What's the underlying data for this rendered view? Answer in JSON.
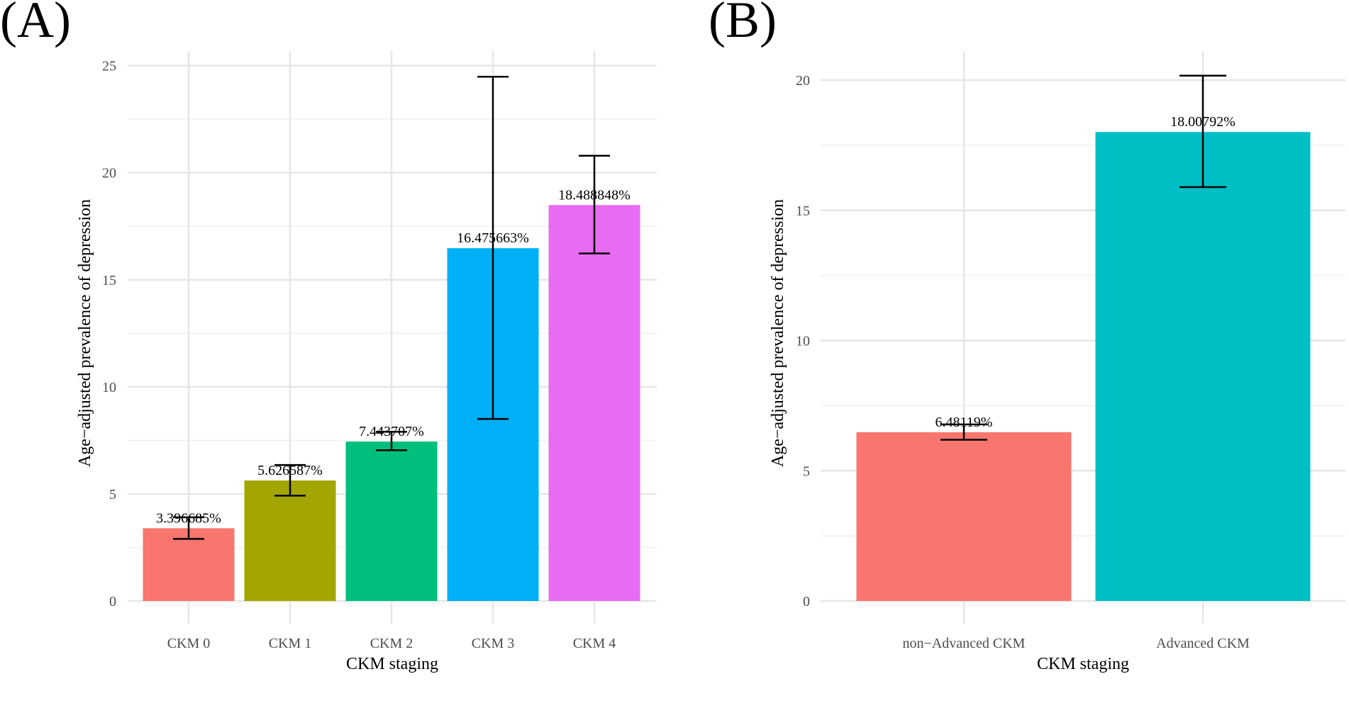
{
  "chart_data": [
    {
      "panel_label": "(A)",
      "type": "bar",
      "title": "",
      "xlabel": "CKM staging",
      "ylabel": "Age−adjusted prevalence of depression",
      "categories": [
        "CKM 0",
        "CKM 1",
        "CKM 2",
        "CKM 3",
        "CKM 4"
      ],
      "values": [
        3.396685,
        5.626587,
        7.443707,
        16.475663,
        18.488848
      ],
      "data_labels": [
        "3.396685%",
        "5.626587%",
        "7.443707%",
        "16.475663%",
        "18.488848%"
      ],
      "error_low": [
        2.9,
        4.92,
        7.04,
        8.5,
        16.23
      ],
      "error_high": [
        3.91,
        6.35,
        7.9,
        24.48,
        20.79
      ],
      "colors": [
        "#F8766D",
        "#A3A500",
        "#00BF7D",
        "#00B0F6",
        "#E76BF3"
      ],
      "ylim": [
        0,
        25
      ],
      "yticks": [
        "0",
        "5",
        "10",
        "15",
        "20",
        "25"
      ],
      "ytick_values": [
        0,
        5,
        10,
        15,
        20,
        25
      ],
      "grid": true,
      "legend": "none"
    },
    {
      "panel_label": "(B)",
      "type": "bar",
      "title": "",
      "xlabel": "CKM staging",
      "ylabel": "Age−adjusted prevalence of depression",
      "categories": [
        "non−Advanced CKM",
        "Advanced CKM"
      ],
      "values": [
        6.48119,
        18.00792
      ],
      "data_labels": [
        "6.48119%",
        "18.00792%"
      ],
      "error_low": [
        6.19,
        15.89
      ],
      "error_high": [
        6.78,
        20.17
      ],
      "colors": [
        "#F8766D",
        "#00BFC4"
      ],
      "ylim": [
        0,
        20
      ],
      "yticks": [
        "0",
        "5",
        "10",
        "15",
        "20"
      ],
      "ytick_values": [
        0,
        5,
        10,
        15,
        20
      ],
      "grid": true,
      "legend": "none"
    }
  ]
}
